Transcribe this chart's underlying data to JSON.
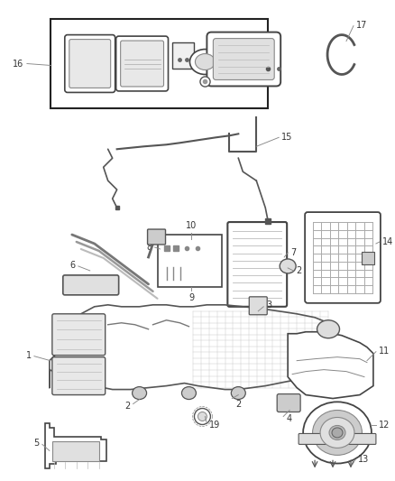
{
  "background_color": "#ffffff",
  "figure_width": 4.38,
  "figure_height": 5.33,
  "dpi": 100,
  "line_color": "#555555",
  "text_color": "#333333",
  "label_font_size": 7,
  "leader_line_color": "#888888",
  "part_edge_color": "#444444",
  "part_fill": "#ffffff",
  "grid_color": "#cccccc",
  "dark_gray": "#666666",
  "mid_gray": "#999999"
}
